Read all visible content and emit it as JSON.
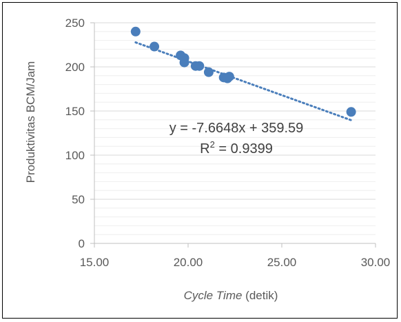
{
  "chart_data": {
    "type": "scatter",
    "xlabel_italic": "Cycle Time",
    "xlabel_rest": " (detik)",
    "ylabel": "Produktivitas BCM/Jam",
    "xlim": [
      15,
      30
    ],
    "ylim": [
      0,
      250
    ],
    "x_ticks": [
      "15.00",
      "20.00",
      "25.00",
      "30.00"
    ],
    "y_ticks": [
      "0",
      "50",
      "100",
      "150",
      "200",
      "250"
    ],
    "grid": true,
    "minor_grid": true,
    "legend": "none",
    "marker_color": "#4A7EBB",
    "points": [
      {
        "x": 17.2,
        "y": 240
      },
      {
        "x": 18.2,
        "y": 223
      },
      {
        "x": 19.6,
        "y": 213
      },
      {
        "x": 19.8,
        "y": 210
      },
      {
        "x": 19.8,
        "y": 205
      },
      {
        "x": 20.4,
        "y": 201
      },
      {
        "x": 20.6,
        "y": 201
      },
      {
        "x": 21.1,
        "y": 194
      },
      {
        "x": 21.9,
        "y": 188
      },
      {
        "x": 22.1,
        "y": 187
      },
      {
        "x": 22.2,
        "y": 189
      },
      {
        "x": 28.7,
        "y": 149
      }
    ],
    "trendline": {
      "type": "linear",
      "slope": -7.6648,
      "intercept": 359.59,
      "x_range": [
        17.2,
        28.7
      ],
      "style": "dotted",
      "color": "#4A7EBB"
    },
    "equation_text": "y = -7.6648x + 359.59",
    "r2_prefix": "R",
    "r2_sup": "2",
    "r2_rest": " = 0.9399"
  }
}
